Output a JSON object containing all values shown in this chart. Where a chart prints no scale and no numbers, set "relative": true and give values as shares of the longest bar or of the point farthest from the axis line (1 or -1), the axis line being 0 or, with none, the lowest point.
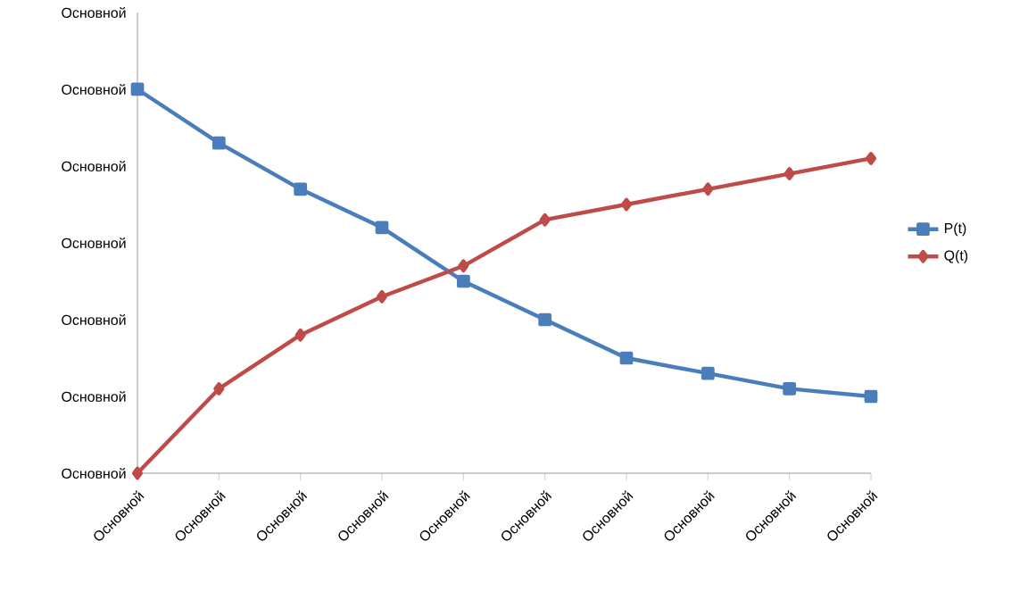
{
  "chart_data": {
    "type": "line",
    "relative": true,
    "categories": [
      "Основной",
      "Основной",
      "Основной",
      "Основной",
      "Основной",
      "Основной",
      "Основной",
      "Основной",
      "Основной",
      "Основной"
    ],
    "annotations": [
      "Основной",
      "Основной",
      "Основной",
      "Основной",
      "Основной",
      "Основной",
      "Основной"
    ],
    "legend": "right",
    "series": [
      {
        "name": "P(t)",
        "color": "#4a7ebb",
        "marker": "square",
        "values": [
          1.0,
          0.86,
          0.74,
          0.64,
          0.5,
          0.4,
          0.3,
          0.26,
          0.22,
          0.2
        ]
      },
      {
        "name": "Q(t)",
        "color": "#be4b48",
        "marker": "diamond",
        "values": [
          0.0,
          0.22,
          0.36,
          0.46,
          0.54,
          0.66,
          0.7,
          0.74,
          0.78,
          0.82
        ]
      }
    ]
  }
}
